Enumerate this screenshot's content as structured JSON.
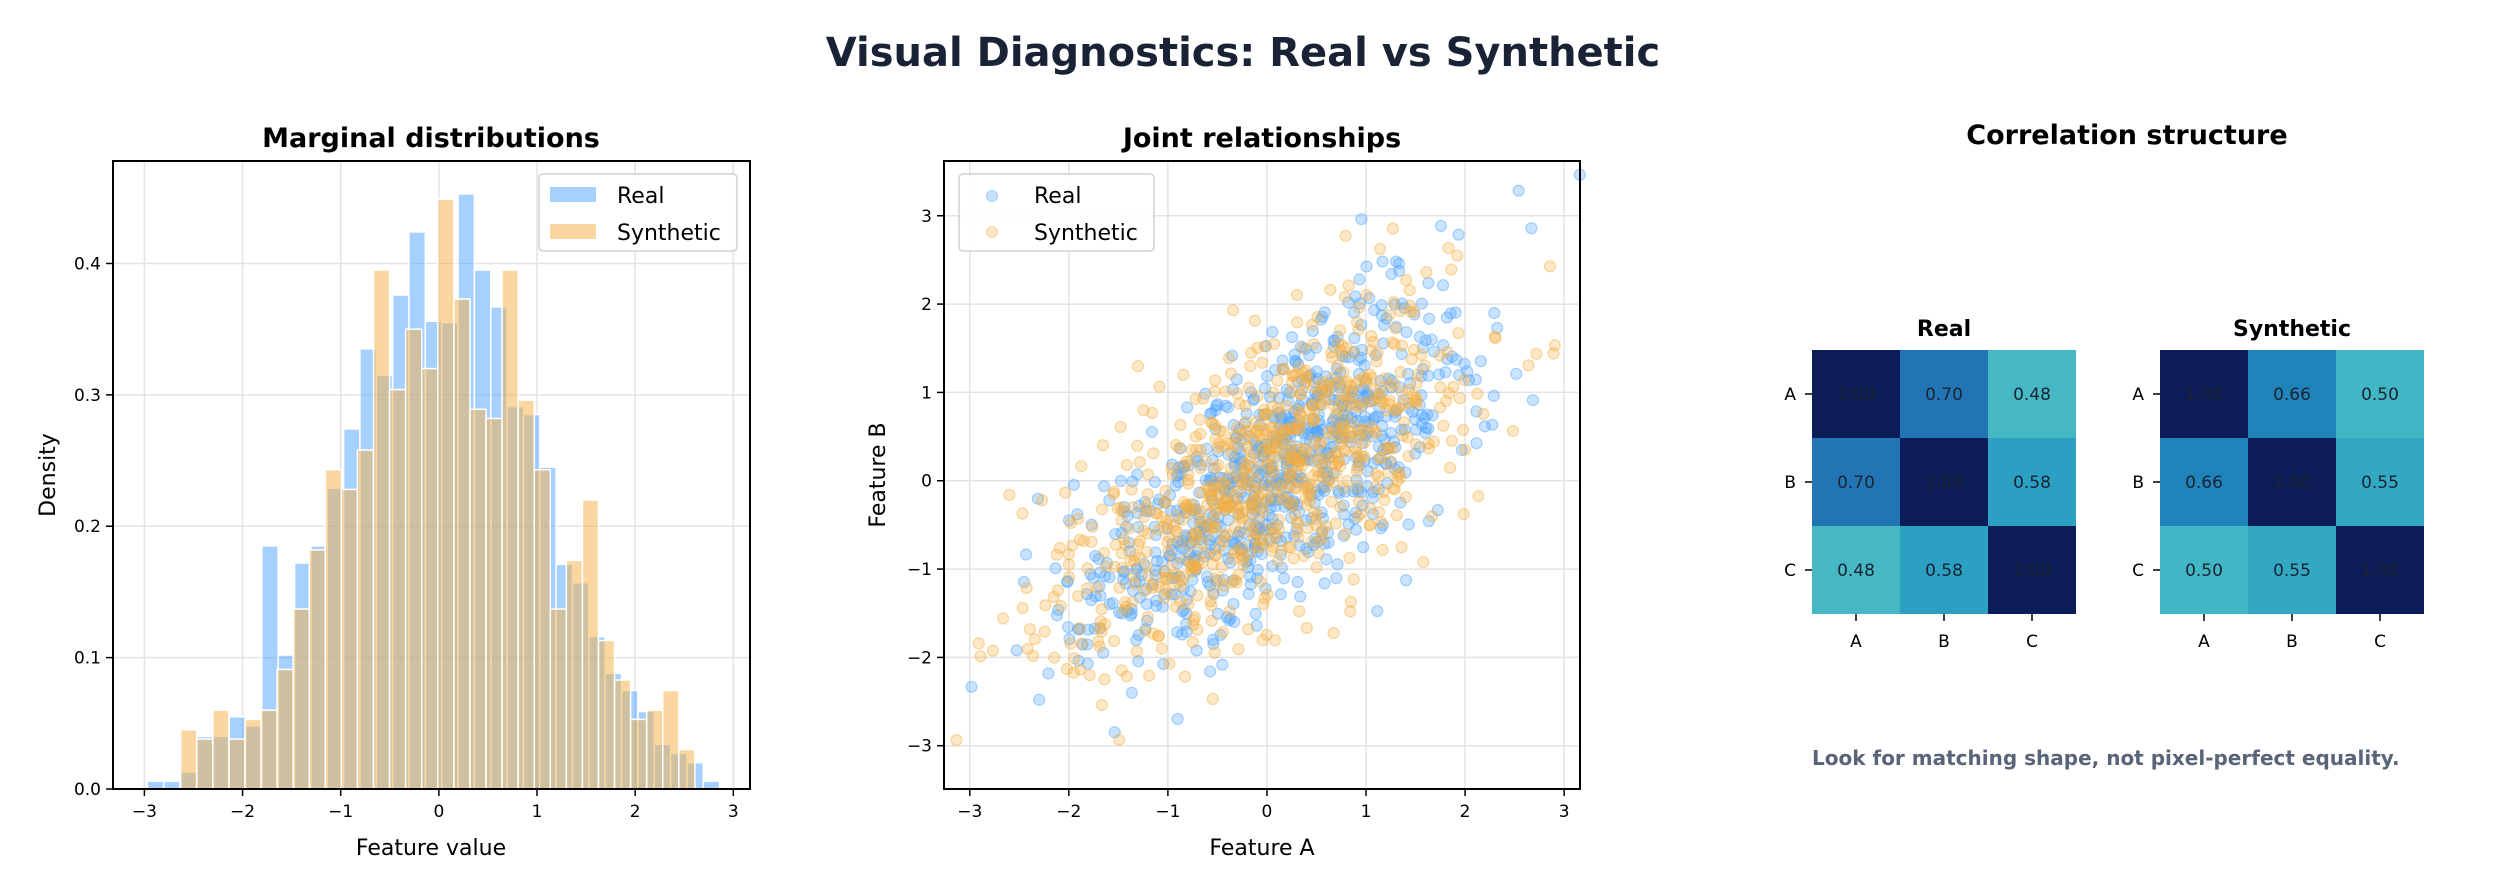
{
  "page": {
    "title": "Visual Diagnostics: Real vs Synthetic",
    "correlation_panel_title": "Correlation structure",
    "footnote": "Look for matching shape, not pixel-perfect equality."
  },
  "chart_data": [
    {
      "type": "bar",
      "subtype": "histogram",
      "title": "Marginal distributions",
      "xlabel": "Feature value",
      "ylabel": "Density",
      "xlim": [
        -3.32,
        3.17
      ],
      "ylim": [
        0,
        0.478
      ],
      "xticks": [
        -3,
        -2,
        -1,
        0,
        1,
        2,
        3
      ],
      "yticks": [
        0.0,
        0.1,
        0.2,
        0.3,
        0.4
      ],
      "ytick_labels": [
        "0.0",
        "0.1",
        "0.2",
        "0.3",
        "0.4"
      ],
      "grid": true,
      "legend": "top-right",
      "series": [
        {
          "name": "Real",
          "color": "#4da3ff",
          "bin_start": -2.97,
          "bin_width": 0.1666,
          "values": [
            0.006,
            0.006,
            0.013,
            0.04,
            0.04,
            0.055,
            0.048,
            0.185,
            0.102,
            0.172,
            0.185,
            0.229,
            0.274,
            0.335,
            0.315,
            0.376,
            0.424,
            0.356,
            0.355,
            0.453,
            0.395,
            0.367,
            0.291,
            0.285,
            0.245,
            0.171,
            0.157,
            0.116,
            0.088,
            0.075,
            0.059,
            0.034,
            0.027,
            0.02,
            0.006
          ]
        },
        {
          "name": "Synthetic",
          "color": "#f5b041",
          "bin_start": -2.63,
          "bin_width": 0.1637,
          "values": [
            0.045,
            0.038,
            0.06,
            0.038,
            0.053,
            0.06,
            0.091,
            0.137,
            0.182,
            0.243,
            0.228,
            0.258,
            0.395,
            0.304,
            0.35,
            0.32,
            0.449,
            0.373,
            0.289,
            0.282,
            0.395,
            0.296,
            0.243,
            0.137,
            0.174,
            0.22,
            0.113,
            0.083,
            0.053,
            0.06,
            0.075,
            0.03
          ]
        }
      ]
    },
    {
      "type": "scatter",
      "title": "Joint relationships",
      "xlabel": "Feature A",
      "ylabel": "Feature B",
      "xlim": [
        -3.26,
        3.16
      ],
      "ylim": [
        -3.49,
        3.62
      ],
      "xticks": [
        -3,
        -2,
        -1,
        0,
        1,
        2,
        3
      ],
      "yticks": [
        -3,
        -2,
        -1,
        0,
        1,
        2,
        3
      ],
      "grid": true,
      "legend": "top-left",
      "series": [
        {
          "name": "Real",
          "color": "#4da3ff",
          "correlation": 0.7
        },
        {
          "name": "Synthetic",
          "color": "#f5b041",
          "correlation": 0.66
        }
      ]
    },
    {
      "type": "heatmap",
      "title": "Real",
      "rows": [
        "A",
        "B",
        "C"
      ],
      "cols": [
        "A",
        "B",
        "C"
      ],
      "values": [
        [
          1.0,
          0.7,
          0.48
        ],
        [
          0.7,
          1.0,
          0.58
        ],
        [
          0.48,
          0.58,
          1.0
        ]
      ],
      "labels": [
        [
          "1.00",
          "0.70",
          "0.48"
        ],
        [
          "0.70",
          "1.00",
          "0.58"
        ],
        [
          "0.48",
          "0.58",
          "1.00"
        ]
      ]
    },
    {
      "type": "heatmap",
      "title": "Synthetic",
      "rows": [
        "A",
        "B",
        "C"
      ],
      "cols": [
        "A",
        "B",
        "C"
      ],
      "values": [
        [
          1.0,
          0.66,
          0.5
        ],
        [
          0.66,
          1.0,
          0.55
        ],
        [
          0.5,
          0.55,
          1.0
        ]
      ],
      "labels": [
        [
          "1.00",
          "0.66",
          "0.50"
        ],
        [
          "0.66",
          "1.00",
          "0.55"
        ],
        [
          "0.50",
          "0.55",
          "1.00"
        ]
      ]
    }
  ]
}
